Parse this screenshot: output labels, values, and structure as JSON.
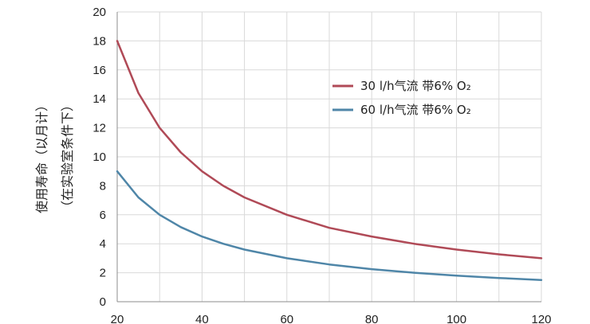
{
  "chart_data": {
    "type": "line",
    "title": "",
    "xlabel": "",
    "ylabel_line1": "使用寿命（以月计）",
    "ylabel_line2": "（在实验室条件下）",
    "xlim": [
      20,
      120
    ],
    "ylim": [
      0,
      20
    ],
    "x_ticks": [
      20,
      40,
      60,
      80,
      100,
      120
    ],
    "y_ticks": [
      0,
      2,
      4,
      6,
      8,
      10,
      12,
      14,
      16,
      18,
      20
    ],
    "grid": true,
    "legend_position": "top-right",
    "series": [
      {
        "name": "30 l/h气流 带6% O₂",
        "color": "#b04a57",
        "x": [
          20,
          25,
          30,
          35,
          40,
          45,
          50,
          60,
          70,
          80,
          90,
          100,
          110,
          120
        ],
        "y": [
          18,
          14.4,
          12,
          10.3,
          9,
          8,
          7.2,
          6,
          5.1,
          4.5,
          4,
          3.6,
          3.27,
          3
        ]
      },
      {
        "name": "60 l/h气流 带6% O₂",
        "color": "#4f86a8",
        "x": [
          20,
          25,
          30,
          35,
          40,
          45,
          50,
          60,
          70,
          80,
          90,
          100,
          110,
          120
        ],
        "y": [
          9,
          7.2,
          6,
          5.15,
          4.5,
          4,
          3.6,
          3,
          2.57,
          2.25,
          2,
          1.8,
          1.64,
          1.5
        ]
      }
    ]
  }
}
